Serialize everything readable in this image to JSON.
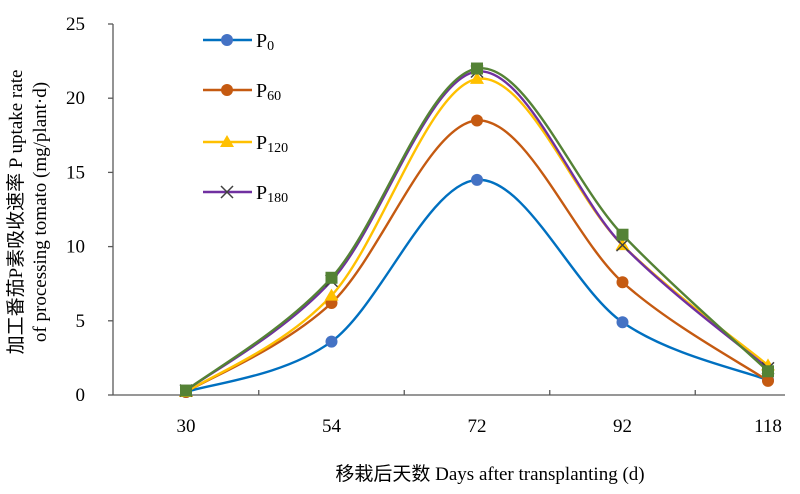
{
  "chart_data": {
    "type": "line",
    "title": "",
    "xlabel": "移栽后天数 Days after transplanting (d)",
    "ylabel_line1": "加工番茄P素吸收速率 P uptake rate",
    "ylabel_line2": "of processing tomato  (mg/plant·d)",
    "categories": [
      "30",
      "54",
      "72",
      "92",
      "118"
    ],
    "ylim": [
      0,
      25
    ],
    "yticks": [
      0,
      5,
      10,
      15,
      20,
      25
    ],
    "grid": false,
    "legend_position": "top-left",
    "series": [
      {
        "name": "P0",
        "label_main": "P",
        "label_sub": "0",
        "color": "#0070C0",
        "marker_color": "#4472C4",
        "marker": "circle",
        "in_legend": true,
        "values": [
          0.2,
          3.6,
          14.5,
          4.9,
          1.0
        ]
      },
      {
        "name": "P60",
        "label_main": "P",
        "label_sub": "60",
        "color": "#C55A11",
        "marker_color": "#C55A11",
        "marker": "circle",
        "in_legend": true,
        "values": [
          0.2,
          6.2,
          18.5,
          7.6,
          0.95
        ]
      },
      {
        "name": "P120",
        "label_main": "P",
        "label_sub": "120",
        "color": "#FFC000",
        "marker_color": "#FFC000",
        "marker": "triangle",
        "in_legend": true,
        "values": [
          0.2,
          6.7,
          21.3,
          10.1,
          2.0
        ]
      },
      {
        "name": "P180",
        "label_main": "P",
        "label_sub": "180",
        "color": "#7030A0",
        "marker_color": "#404040",
        "marker": "x",
        "in_legend": true,
        "values": [
          0.3,
          7.7,
          21.8,
          10.1,
          1.8
        ]
      },
      {
        "name": "",
        "label_main": "",
        "label_sub": "",
        "color": "#548235",
        "marker_color": "#548235",
        "marker": "square",
        "in_legend": false,
        "values": [
          0.3,
          7.9,
          22.0,
          10.8,
          1.6
        ]
      }
    ]
  }
}
